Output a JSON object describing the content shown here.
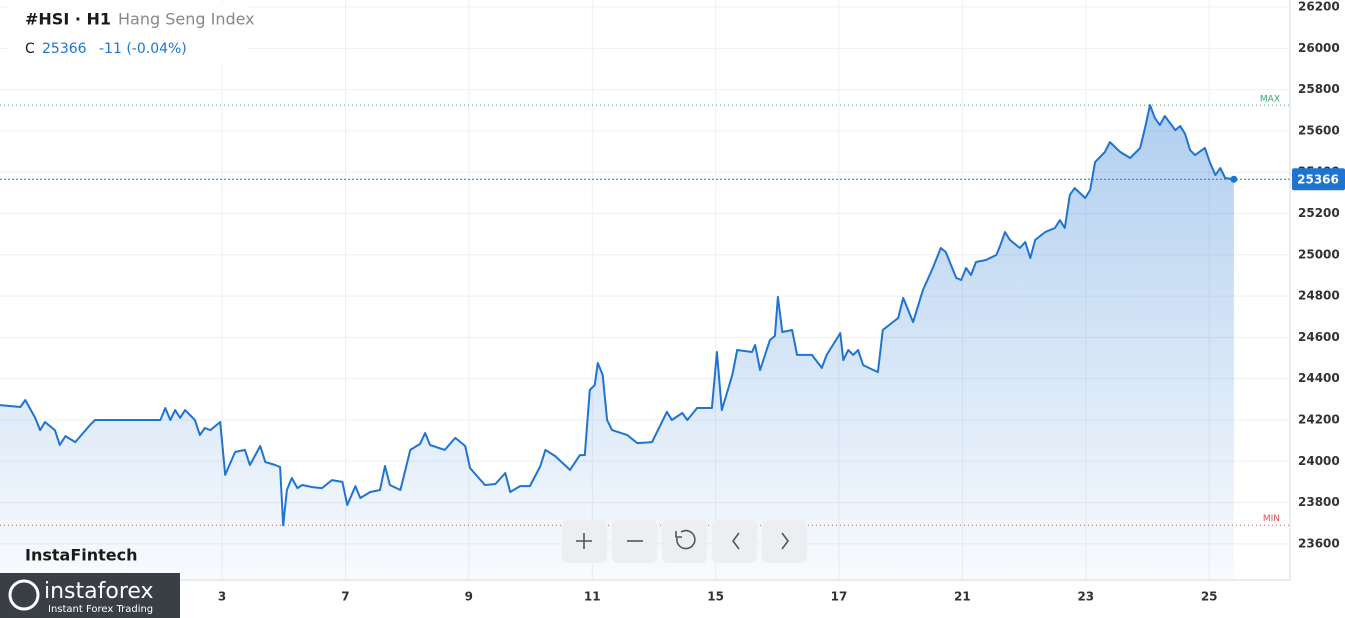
{
  "chart_data": {
    "type": "line",
    "symbol": "#HSI · H1",
    "close_prefix": "C",
    "close": 25366,
    "change_label": "-11 (-0.04%)",
    "max_label": "MAX",
    "min_label": "MIN",
    "brand": "InstaFintech",
    "logo_name": "instaforex",
    "logo_tagline": "Instant Forex Trading",
    "xlim": [
      -1.6,
      19.31
    ],
    "ylim": [
      23425,
      26234
    ],
    "xticks": [
      {
        "value": 2,
        "label": "3"
      },
      {
        "value": 4,
        "label": "7"
      },
      {
        "value": 6,
        "label": "9"
      },
      {
        "value": 8,
        "label": "11"
      },
      {
        "value": 10,
        "label": "15"
      },
      {
        "value": 12,
        "label": "17"
      },
      {
        "value": 14,
        "label": "21"
      },
      {
        "value": 16,
        "label": "23"
      },
      {
        "value": 18,
        "label": "25"
      }
    ],
    "yticks": [
      23600,
      23800,
      24000,
      24200,
      24400,
      24600,
      24800,
      25000,
      25200,
      25400,
      25600,
      25800,
      26000,
      26200
    ],
    "grid": true,
    "series": [
      {
        "name": "Hang Seng Index",
        "color": "#1f74d2",
        "x": [
          -1.6,
          -1.27,
          -1.19,
          -1.03,
          -0.95,
          -0.87,
          -0.71,
          -0.63,
          -0.54,
          -0.38,
          -0.14,
          -0.06,
          0.91,
          1,
          1.08,
          1.16,
          1.24,
          1.32,
          1.4,
          1.56,
          1.64,
          1.72,
          1.81,
          1.97,
          2.05,
          2.21,
          2.37,
          2.45,
          2.62,
          2.7,
          2.86,
          2.94,
          2.99,
          3.05,
          3.13,
          3.22,
          3.3,
          3.46,
          3.62,
          3.78,
          3.95,
          4.03,
          4.16,
          4.24,
          4.4,
          4.56,
          4.64,
          4.72,
          4.89,
          5.05,
          5.21,
          5.29,
          5.37,
          5.61,
          5.78,
          5.94,
          6.02,
          6.26,
          6.43,
          6.59,
          6.67,
          6.83,
          6.99,
          7.16,
          7.24,
          7.4,
          7.64,
          7.8,
          7.88,
          7.96,
          8.04,
          8.09,
          8.17,
          8.24,
          8.32,
          8.57,
          8.73,
          8.97,
          9.05,
          9.21,
          9.29,
          9.46,
          9.54,
          9.7,
          9.94,
          10.02,
          10.1,
          10.27,
          10.35,
          10.59,
          10.64,
          10.72,
          10.88,
          10.96,
          11.01,
          11.08,
          11.24,
          11.32,
          11.56,
          11.72,
          11.8,
          12.02,
          12.07,
          12.15,
          12.23,
          12.31,
          12.39,
          12.63,
          12.71,
          12.96,
          13.04,
          13.2,
          13.36,
          13.52,
          13.65,
          13.73,
          13.9,
          13.98,
          14.06,
          14.14,
          14.22,
          14.38,
          14.55,
          14.61,
          14.69,
          14.77,
          14.93,
          15.02,
          15.1,
          15.18,
          15.34,
          15.5,
          15.58,
          15.66,
          15.74,
          15.82,
          15.99,
          16.07,
          16.15,
          16.31,
          16.39,
          16.56,
          16.72,
          16.88,
          16.96,
          17.04,
          17.12,
          17.2,
          17.28,
          17.45,
          17.53,
          17.61,
          17.69,
          17.77,
          17.93,
          18.01,
          18.1,
          18.18,
          18.26,
          18.4
        ],
        "values": [
          24272,
          24263,
          24297,
          24210,
          24151,
          24190,
          24151,
          24079,
          24122,
          24093,
          24176,
          24200,
          24200,
          24200,
          24258,
          24200,
          24248,
          24210,
          24248,
          24200,
          24127,
          24161,
          24151,
          24190,
          23934,
          24045,
          24055,
          23982,
          24074,
          23996,
          23982,
          23972,
          23690,
          23861,
          23919,
          23870,
          23885,
          23875,
          23870,
          23909,
          23900,
          23788,
          23880,
          23822,
          23851,
          23861,
          23977,
          23885,
          23861,
          24055,
          24084,
          24137,
          24079,
          24055,
          24113,
          24074,
          23967,
          23885,
          23890,
          23943,
          23851,
          23880,
          23880,
          23977,
          24055,
          24025,
          23958,
          24030,
          24030,
          24345,
          24369,
          24476,
          24418,
          24200,
          24151,
          24127,
          24088,
          24093,
          24142,
          24239,
          24200,
          24234,
          24200,
          24258,
          24258,
          24529,
          24248,
          24418,
          24539,
          24529,
          24563,
          24442,
          24587,
          24607,
          24796,
          24626,
          24636,
          24515,
          24515,
          24452,
          24515,
          24621,
          24490,
          24539,
          24515,
          24539,
          24466,
          24432,
          24636,
          24694,
          24791,
          24674,
          24829,
          24936,
          25033,
          25013,
          24888,
          24878,
          24936,
          24902,
          24965,
          24975,
          24999,
          25042,
          25110,
          25072,
          25033,
          25062,
          24984,
          25072,
          25110,
          25130,
          25168,
          25130,
          25290,
          25323,
          25275,
          25314,
          25449,
          25498,
          25546,
          25498,
          25469,
          25517,
          25614,
          25725,
          25662,
          25628,
          25672,
          25604,
          25624,
          25585,
          25507,
          25483,
          25517,
          25449,
          25386,
          25420,
          25372,
          25366
        ]
      }
    ]
  }
}
